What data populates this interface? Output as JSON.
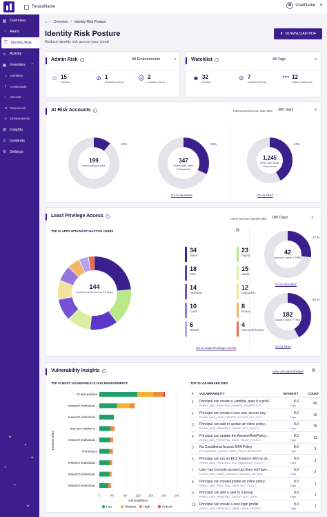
{
  "topbar": {
    "tenant": "TenantName",
    "user": "UserName"
  },
  "sidebar": {
    "items": [
      {
        "label": "Overview",
        "icon": "grid-icon"
      },
      {
        "label": "Alerts",
        "icon": "bell-icon"
      },
      {
        "label": "Identity Risk",
        "icon": "shield-icon"
      },
      {
        "label": "Activity",
        "icon": "activity-icon"
      },
      {
        "label": "Inventory",
        "icon": "box-icon"
      }
    ],
    "inventory_sub": [
      {
        "label": "Identities",
        "icon": "user-icon"
      },
      {
        "label": "Credentials",
        "icon": "key-icon"
      },
      {
        "label": "Secrets",
        "icon": "lock-icon"
      },
      {
        "label": "Resources",
        "icon": "cloud-icon"
      },
      {
        "label": "Environments",
        "icon": "layers-icon"
      }
    ],
    "bottom_items": [
      {
        "label": "Insights",
        "icon": "chart-icon"
      },
      {
        "label": "Incidents",
        "icon": "alert-icon"
      },
      {
        "label": "Settings",
        "icon": "gear-icon"
      }
    ]
  },
  "breadcrumb": {
    "home_icon": "home-icon",
    "parent": "Overview",
    "current": "Identity Risk Posture"
  },
  "page": {
    "title": "Identity Risk Posture",
    "subtitle": "Reduce identity risk across your cloud",
    "download": "DOWNLOAD PDF"
  },
  "admin_risk": {
    "title": "Admin Risk",
    "filter": "All Environments",
    "stats": [
      {
        "value": "15",
        "label": "Admins",
        "icon": "user-icon"
      },
      {
        "value": "1",
        "label": "Disabled MFAs",
        "icon": "no-mfa-icon"
      },
      {
        "value": "2",
        "label": "Inactive Users",
        "icon": "inactive-user-icon"
      }
    ]
  },
  "watchlist": {
    "title": "Watchlist",
    "filter": "All Tags",
    "stats": [
      {
        "value": "32",
        "label": "Entities",
        "icon": "users-icon"
      },
      {
        "value": "7",
        "label": "Disabled MFAs",
        "icon": "no-mfa-icon"
      },
      {
        "value": "12",
        "label": "Stale Passwords",
        "icon": "password-icon"
      }
    ]
  },
  "at_risk": {
    "title": "At Risk Accounts",
    "stale_label": "Passwords become stale after",
    "stale_value": "365 days",
    "donuts": [
      {
        "value": "199",
        "label": "Users without MFA",
        "pct_text": "11%",
        "pct": 0.11,
        "link": ""
      },
      {
        "value": "347",
        "label": "Users with Stale Passwords",
        "pct_text": "32%",
        "pct": 0.32,
        "link": "Go to identities"
      },
      {
        "value": "1,245",
        "label": "NHIs with Stale Passwords",
        "pct_text": "42%",
        "pct": 0.42,
        "link": "Go to NHIs"
      }
    ]
  },
  "least_priv": {
    "title": "Least Privilege Access",
    "inactive_label": "Users become inactive after",
    "inactive_value": "180 Days",
    "top_apps_title": "TOP 10 APPS WITH MOST INACTIVE USERS",
    "center_value": "144",
    "center_label": "Inactive Users Across 10 Apps",
    "apps": [
      {
        "name": "Slack",
        "count": 34,
        "color": "#3c1f8c"
      },
      {
        "name": "Figma",
        "count": 23,
        "color": "#b8e986"
      },
      {
        "name": "Miro",
        "count": 18,
        "color": "#5b37c4"
      },
      {
        "name": "Vanta",
        "count": 15,
        "color": "#d9ef9f"
      },
      {
        "name": "Atlassian",
        "count": 14,
        "color": "#7650d6"
      },
      {
        "name": "Logrocket",
        "count": 12,
        "color": "#f1e39d"
      },
      {
        "name": "Loom",
        "count": 10,
        "color": "#9677e2"
      },
      {
        "name": "Notion",
        "count": 8,
        "color": "#f2b766"
      },
      {
        "name": "GitHub",
        "count": 6,
        "color": "#b6a2ee"
      },
      {
        "name": "Microsoft Teams",
        "count": 4,
        "color": "#e86b4b"
      }
    ],
    "link": "Go to Least Privilege Access",
    "side_donuts": [
      {
        "value": "42",
        "label": "Inactive Users + HBR",
        "pct_text": "27 %",
        "pct": 0.27,
        "link": "Go to Identities"
      },
      {
        "value": "182",
        "label": "Inactive NHIs + HBR",
        "pct_text": "42 %",
        "pct": 0.42,
        "link": "Go to NHIs"
      }
    ]
  },
  "vuln": {
    "title": "Vulnerability Insights",
    "view_all": "View all vulnerabilities",
    "chart_title": "TOP 10 MOST VULNERABLE CLOUD ENVIRONMENTS",
    "table_title": "TOP 10 VULNERABILITIES",
    "table_headers": {
      "num": "#",
      "vuln": "VULNERABILITY",
      "sev": "SEVERITY",
      "count": "COUNT"
    },
    "rows": [
      {
        "num": "1",
        "title": "Principal can create a Lambda, pass it a privil...",
        "id": "RHINO_AWS_PRINCIPAL_LAMBDA_PASSROLE_P...",
        "sev": "8.0",
        "sevl": "High",
        "count": "66"
      },
      {
        "num": "2",
        "title": "Principal can create a new user access key.",
        "id": "RHINO_AWS_USER_CREATE_ACCESS_KEY_POL...",
        "sev": "8.0",
        "sevl": "High",
        "count": "16"
      },
      {
        "num": "3",
        "title": "Principal can add or update an inline policy...",
        "id": "RHINO_AWS_PRINCIPAL_GROUP_PUT_POLICY...",
        "sev": "8.0",
        "sevl": "High",
        "count": "15"
      },
      {
        "num": "4",
        "title": "Principal can update the AssumeRolePolicy...",
        "id": "RHINO_AWS_PRINCIPAL_ROLE_TRUST_POLICY...",
        "sev": "8.0",
        "sevl": "High",
        "count": "13"
      },
      {
        "num": "5",
        "title": "No Conditional Access MFA Policy",
        "id": "PO_AZUREAD_QUEST_USER_STALE_INVITATION",
        "sev": "8.0",
        "sevl": "High",
        "count": "3"
      },
      {
        "num": "6",
        "title": "Principal can run an EC2 instance with an at...",
        "id": "RHINO_AWS_PRINCIPAL_EC2_PASSROLE_POLICY",
        "sev": "8.0",
        "sevl": "High",
        "count": "3"
      },
      {
        "num": "7",
        "title": "User has Console access but does not have ...",
        "id": "RHINO_AWS_USER_CONSOLE_ACCESS_NO_MFA",
        "sev": "8.0",
        "sevl": "High",
        "count": "2"
      },
      {
        "num": "8",
        "title": "Principal can create/update an inline policy...",
        "id": "RHINO_AWS_PRINCIPAL_USER_PUT_POLICY",
        "sev": "8.0",
        "sevl": "High",
        "count": "1"
      },
      {
        "num": "9",
        "title": "Principal can add a user to a group",
        "id": "RHINO_AWS_PRINCIPAL_GROUP_ADD_USER",
        "sev": "8.0",
        "sevl": "High",
        "count": "1"
      },
      {
        "num": "10",
        "title": "Principal can create a new login profile",
        "id": "RHINO_AWS_PRINCIPAL_USER_LOGIN_PROFILE",
        "sev": "8.0",
        "sevl": "High",
        "count": "1"
      }
    ]
  },
  "chart_data": {
    "type": "bar",
    "orientation": "horizontal",
    "stacked": true,
    "categories": [
      "ctf-iam-policies",
      "research-individual...",
      "research-individual...",
      "test-aws-arbiter-s...",
      "research-individual...",
      "Permiso.io",
      "research-individual...",
      "research-individual...",
      "research-individual..."
    ],
    "series": [
      {
        "name": "Low",
        "color": "#22a06b",
        "values": [
          118,
          55,
          45,
          35,
          33,
          32,
          32,
          30,
          28
        ]
      },
      {
        "name": "Medium",
        "color": "#f2b233",
        "values": [
          50,
          40,
          0,
          0,
          0,
          0,
          0,
          0,
          0
        ]
      },
      {
        "name": "High",
        "color": "#f08a3c",
        "values": [
          30,
          15,
          0,
          12,
          10,
          10,
          8,
          8,
          8
        ]
      },
      {
        "name": "Critical",
        "color": "#e0493b",
        "values": [
          6,
          0,
          0,
          0,
          0,
          0,
          0,
          0,
          0
        ]
      }
    ],
    "xlabel": "Vulnerabilities",
    "ylabel": "Environments",
    "xlim": [
      0,
      240
    ],
    "xticks": [
      0,
      40,
      80,
      120,
      160,
      200,
      240
    ],
    "legend": "bottom"
  }
}
